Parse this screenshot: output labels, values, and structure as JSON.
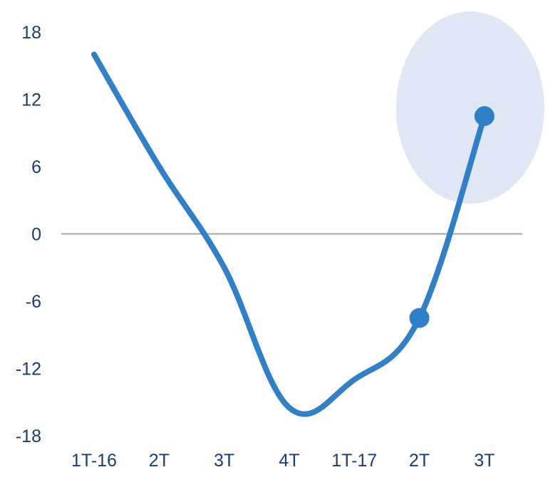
{
  "chart_data": {
    "type": "line",
    "categories": [
      "1T-16",
      "2T",
      "3T",
      "4T",
      "1T-17",
      "2T",
      "3T"
    ],
    "series": [
      {
        "values": [
          16,
          6,
          -3,
          -15.5,
          -13,
          -7.5,
          10.5
        ]
      }
    ],
    "ylim": [
      -18,
      18
    ],
    "yticks": [
      18,
      12,
      6,
      0,
      -6,
      -12,
      -18
    ],
    "ytick_labels": [
      "18",
      "12",
      "6",
      "0",
      "-6",
      "-12",
      "-18"
    ],
    "highlight_points": [
      5,
      6
    ],
    "callout_point": 6,
    "grid": false,
    "zero_line": true,
    "colors": {
      "line": "#2f80c8",
      "marker": "#2f80c8",
      "callout": "#dfe8f4",
      "zero_line": "#a6a6a6",
      "text": "#1b3d73"
    }
  }
}
